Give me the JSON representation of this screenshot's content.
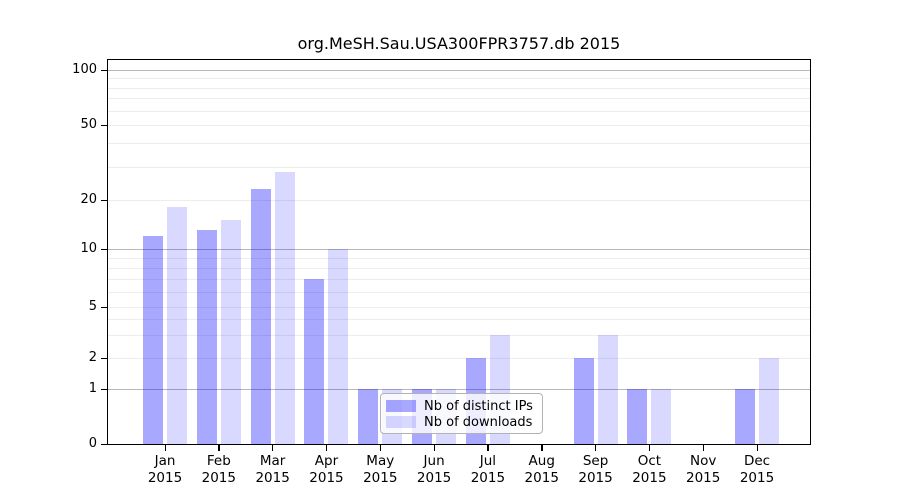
{
  "chart_data": {
    "type": "bar",
    "title": "org.MeSH.Sau.USA300FPR3757.db 2015",
    "categories": [
      "Jan",
      "Feb",
      "Mar",
      "Apr",
      "May",
      "Jun",
      "Jul",
      "Aug",
      "Sep",
      "Oct",
      "Nov",
      "Dec"
    ],
    "year_label": "2015",
    "series": [
      {
        "name": "Nb of distinct IPs",
        "color": "rgba(0,0,255,0.34)",
        "values": [
          12,
          13,
          23,
          7,
          1,
          1,
          2,
          0,
          2,
          1,
          0,
          1
        ]
      },
      {
        "name": "Nb of downloads",
        "color": "rgba(0,0,255,0.15)",
        "values": [
          18,
          15,
          28,
          10,
          1,
          1,
          3,
          0,
          3,
          1,
          0,
          2
        ]
      }
    ],
    "y_axis": {
      "scale": "log-like with linear segment from 0 to 1",
      "tick_values": [
        100,
        50,
        20,
        10,
        5,
        2,
        1,
        0
      ],
      "major_gridlines": [
        1,
        10,
        100
      ],
      "minor_gridlines": [
        2,
        3,
        4,
        5,
        6,
        7,
        8,
        9,
        20,
        30,
        40,
        50,
        60,
        70,
        80,
        90
      ],
      "range": [
        0,
        120
      ]
    },
    "grid": true,
    "legend_position": "lower-center-inside",
    "background_color": "#ffffff"
  }
}
